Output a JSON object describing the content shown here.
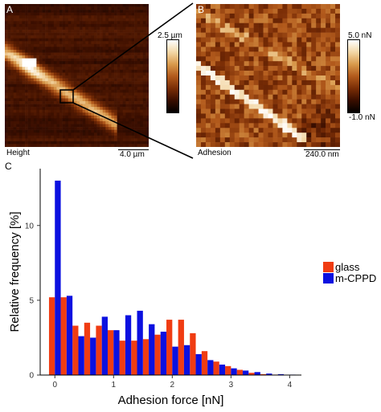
{
  "panel_a": {
    "letter": "A",
    "caption": "Height",
    "scalebar": "4.0 µm",
    "colorbar_max": "2.5 µm",
    "colormap": [
      "#000000",
      "#3a0e00",
      "#7a2d06",
      "#b25a1c",
      "#d99a4c",
      "#f3d7a6",
      "#ffffff"
    ]
  },
  "panel_b": {
    "letter": "B",
    "caption": "Adhesion",
    "scalebar": "240.0 nm",
    "colorbar_max": "5.0 nN",
    "colorbar_min": "-1.0 nN",
    "colormap": [
      "#000000",
      "#3a0e00",
      "#7a2d06",
      "#b25a1c",
      "#d99a4c",
      "#f3d7a6",
      "#ffffff"
    ]
  },
  "panel_c": {
    "letter": "C",
    "chart_data": {
      "type": "bar",
      "title": "",
      "xlabel": "Adhesion force [nN]",
      "ylabel": "Relative frequency [%]",
      "xlim": [
        -0.25,
        4.2
      ],
      "ylim": [
        0,
        13.8
      ],
      "xticks": [
        0,
        1,
        2,
        3,
        4
      ],
      "yticks": [
        0,
        5,
        10
      ],
      "grid": false,
      "legend_position": "right",
      "bin_width": 0.2,
      "x": [
        0,
        0.2,
        0.4,
        0.6,
        0.8,
        1.0,
        1.2,
        1.4,
        1.6,
        1.8,
        2.0,
        2.2,
        2.4,
        2.6,
        2.8,
        3.0,
        3.2,
        3.4,
        3.6,
        3.8,
        4.0
      ],
      "series": [
        {
          "name": "glass",
          "color": "#f03c12",
          "values": [
            5.2,
            5.2,
            3.3,
            3.5,
            3.3,
            3.0,
            2.3,
            2.3,
            2.4,
            2.7,
            3.7,
            3.7,
            2.8,
            1.6,
            0.9,
            0.6,
            0.35,
            0.15,
            0.06,
            0.03,
            0.0
          ]
        },
        {
          "name": "m-CPPD",
          "color": "#0b10e0",
          "values": [
            13.0,
            5.3,
            2.6,
            2.5,
            3.9,
            3.0,
            4.0,
            4.3,
            3.4,
            2.9,
            1.9,
            2.0,
            1.4,
            1.0,
            0.7,
            0.45,
            0.3,
            0.2,
            0.1,
            0.06,
            0.03
          ]
        }
      ]
    }
  }
}
